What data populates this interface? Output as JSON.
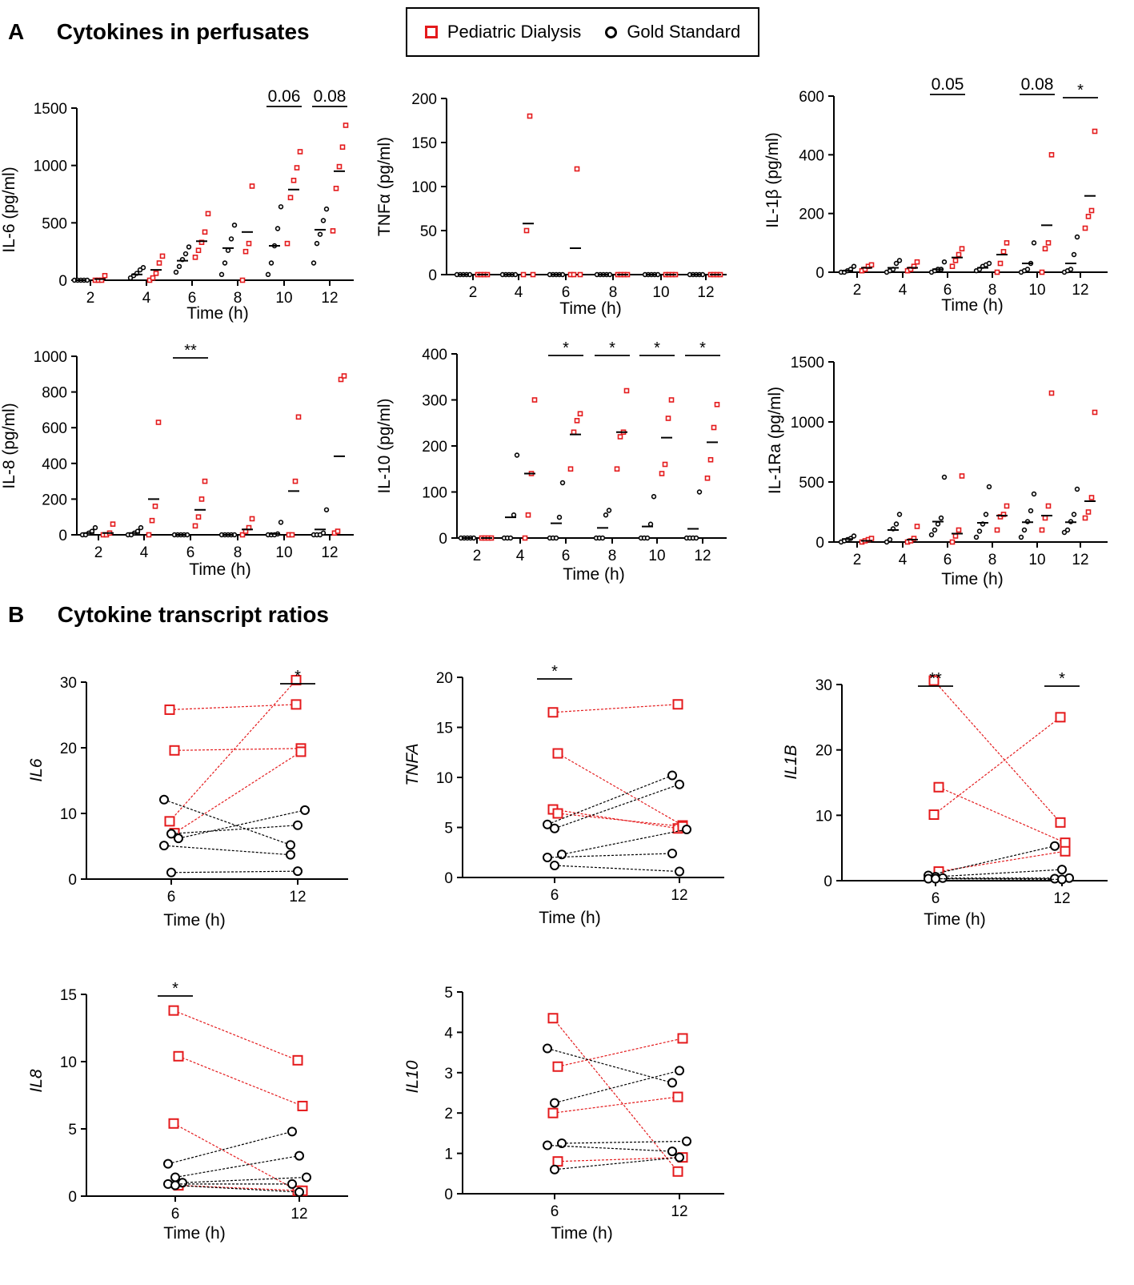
{
  "panels": {
    "a_letter": "A",
    "a_title": "Cytokines in perfusates",
    "b_letter": "B",
    "b_title": "Cytokine transcript ratios"
  },
  "legend": {
    "pd_label": "Pediatric Dialysis",
    "gs_label": "Gold Standard"
  },
  "colors": {
    "pd": "#e41a1c",
    "gs": "#000000"
  },
  "chart_data": [
    {
      "id": "il6",
      "type": "scatter",
      "ylabel": "IL-6 (pg/ml)",
      "xlabel": "Time (h)",
      "x": [
        2,
        4,
        6,
        8,
        10,
        12
      ],
      "ylim": [
        0,
        1500
      ],
      "yticks": [
        0,
        500,
        1000,
        1500
      ],
      "series": [
        {
          "name": "Gold Standard",
          "points": [
            [
              0,
              0,
              0,
              0,
              0
            ],
            [
              20,
              40,
              60,
              90,
              110
            ],
            [
              70,
              120,
              180,
              230,
              290
            ],
            [
              50,
              150,
              260,
              360,
              480
            ],
            [
              50,
              150,
              300,
              450,
              640
            ],
            [
              150,
              320,
              400,
              520,
              620
            ]
          ],
          "means": [
            0,
            50,
            170,
            280,
            300,
            440
          ]
        },
        {
          "name": "Pediatric Dialysis",
          "points": [
            [
              0,
              0,
              0,
              40
            ],
            [
              0,
              20,
              60,
              150,
              210
            ],
            [
              200,
              260,
              330,
              420,
              580
            ],
            [
              0,
              250,
              320,
              820
            ],
            [
              320,
              720,
              870,
              980,
              1120
            ],
            [
              430,
              800,
              990,
              1160,
              1350
            ]
          ],
          "means": [
            10,
            90,
            340,
            420,
            790,
            950
          ]
        }
      ],
      "annotations": [
        {
          "x": 10,
          "text": "0.06"
        },
        {
          "x": 12,
          "text": "0.08"
        }
      ]
    },
    {
      "id": "tnfa",
      "type": "scatter",
      "ylabel": "TNFα (pg/ml)",
      "xlabel": "Time (h)",
      "x": [
        2,
        4,
        6,
        8,
        10,
        12
      ],
      "ylim": [
        0,
        200
      ],
      "yticks": [
        0,
        50,
        100,
        150,
        200
      ],
      "series": [
        {
          "name": "Gold Standard",
          "points": [
            [
              0,
              0,
              0,
              0,
              0
            ],
            [
              0,
              0,
              0,
              0,
              0
            ],
            [
              0,
              0,
              0,
              0,
              0
            ],
            [
              0,
              0,
              0,
              0,
              0
            ],
            [
              0,
              0,
              0,
              0,
              0
            ],
            [
              0,
              0,
              0,
              0,
              0
            ]
          ],
          "means": [
            0,
            0,
            0,
            0,
            0,
            0
          ]
        },
        {
          "name": "Pediatric Dialysis",
          "points": [
            [
              0,
              0,
              0,
              0
            ],
            [
              0,
              50,
              180,
              0
            ],
            [
              0,
              0,
              120,
              0
            ],
            [
              0,
              0,
              0,
              0
            ],
            [
              0,
              0,
              0,
              0
            ],
            [
              0,
              0,
              0,
              0
            ]
          ],
          "means": [
            0,
            58,
            30,
            0,
            0,
            0
          ]
        }
      ],
      "annotations": []
    },
    {
      "id": "il1b",
      "type": "scatter",
      "ylabel": "IL-1β (pg/ml)",
      "xlabel": "Time (h)",
      "x": [
        2,
        4,
        6,
        8,
        10,
        12
      ],
      "ylim": [
        0,
        600
      ],
      "yticks": [
        0,
        200,
        400,
        600
      ],
      "series": [
        {
          "name": "Gold Standard",
          "points": [
            [
              0,
              0,
              5,
              10,
              20
            ],
            [
              0,
              5,
              10,
              30,
              40
            ],
            [
              0,
              5,
              10,
              10,
              35
            ],
            [
              5,
              10,
              20,
              25,
              30
            ],
            [
              0,
              5,
              10,
              30,
              100
            ],
            [
              0,
              5,
              10,
              60,
              120
            ]
          ],
          "means": [
            5,
            15,
            10,
            15,
            30,
            30
          ]
        },
        {
          "name": "Pediatric Dialysis",
          "points": [
            [
              5,
              10,
              20,
              25
            ],
            [
              5,
              10,
              20,
              35
            ],
            [
              20,
              40,
              60,
              80
            ],
            [
              0,
              30,
              70,
              100
            ],
            [
              0,
              80,
              100,
              400
            ],
            [
              150,
              190,
              210,
              480
            ]
          ],
          "means": [
            15,
            15,
            50,
            60,
            160,
            260
          ]
        }
      ],
      "annotations": [
        {
          "x": 6,
          "text": "0.05"
        },
        {
          "x": 10,
          "text": "0.08"
        },
        {
          "x": 12,
          "text": "*"
        }
      ]
    },
    {
      "id": "il8",
      "type": "scatter",
      "ylabel": "IL-8 (pg/ml)",
      "xlabel": "Time (h)",
      "x": [
        2,
        4,
        6,
        8,
        10,
        12
      ],
      "ylim": [
        0,
        1000
      ],
      "yticks": [
        0,
        200,
        400,
        600,
        800,
        1000
      ],
      "series": [
        {
          "name": "Gold Standard",
          "points": [
            [
              0,
              0,
              10,
              20,
              40
            ],
            [
              0,
              0,
              10,
              20,
              40
            ],
            [
              0,
              0,
              0,
              0,
              0
            ],
            [
              0,
              0,
              0,
              0,
              0
            ],
            [
              0,
              0,
              0,
              5,
              70
            ],
            [
              0,
              0,
              0,
              10,
              140
            ]
          ],
          "means": [
            10,
            10,
            0,
            0,
            5,
            30
          ]
        },
        {
          "name": "Pediatric Dialysis",
          "points": [
            [
              0,
              0,
              10,
              60
            ],
            [
              0,
              80,
              160,
              630
            ],
            [
              50,
              100,
              200,
              300
            ],
            [
              0,
              20,
              40,
              90
            ],
            [
              0,
              0,
              300,
              660
            ],
            [
              10,
              20,
              870,
              890
            ]
          ],
          "means": [
            10,
            200,
            140,
            30,
            245,
            440
          ]
        }
      ],
      "annotations": [
        {
          "x": 6,
          "text": "**"
        }
      ]
    },
    {
      "id": "il10",
      "type": "scatter",
      "ylabel": "IL-10 (pg/ml)",
      "xlabel": "Time (h)",
      "x": [
        2,
        4,
        6,
        8,
        10,
        12
      ],
      "ylim": [
        0,
        400
      ],
      "yticks": [
        0,
        100,
        200,
        300,
        400
      ],
      "series": [
        {
          "name": "Gold Standard",
          "points": [
            [
              0,
              0,
              0,
              0,
              0
            ],
            [
              0,
              0,
              0,
              50,
              180
            ],
            [
              0,
              0,
              0,
              45,
              120
            ],
            [
              0,
              0,
              0,
              50,
              60
            ],
            [
              0,
              0,
              0,
              30,
              90
            ],
            [
              0,
              0,
              0,
              0,
              100
            ]
          ],
          "means": [
            0,
            45,
            32,
            22,
            25,
            20
          ]
        },
        {
          "name": "Pediatric Dialysis",
          "points": [
            [
              0,
              0,
              0,
              0
            ],
            [
              0,
              50,
              140,
              300
            ],
            [
              150,
              230,
              255,
              270
            ],
            [
              150,
              220,
              230,
              320
            ],
            [
              140,
              160,
              260,
              300
            ],
            [
              130,
              170,
              240,
              290
            ]
          ],
          "means": [
            0,
            140,
            225,
            230,
            218,
            208
          ]
        }
      ],
      "annotations": [
        {
          "x": 6,
          "text": "*"
        },
        {
          "x": 8,
          "text": "*"
        },
        {
          "x": 10,
          "text": "*"
        },
        {
          "x": 12,
          "text": "*"
        }
      ]
    },
    {
      "id": "il1ra",
      "type": "scatter",
      "ylabel": "IL-1Ra (pg/ml)",
      "xlabel": "Time (h)",
      "x": [
        2,
        4,
        6,
        8,
        10,
        12
      ],
      "ylim": [
        0,
        1500
      ],
      "yticks": [
        0,
        500,
        1000,
        1500
      ],
      "series": [
        {
          "name": "Gold Standard",
          "points": [
            [
              0,
              10,
              20,
              30,
              50
            ],
            [
              0,
              20,
              110,
              150,
              230
            ],
            [
              60,
              100,
              150,
              200,
              540
            ],
            [
              40,
              90,
              150,
              230,
              460
            ],
            [
              40,
              100,
              170,
              260,
              400
            ],
            [
              80,
              100,
              170,
              230,
              440
            ]
          ],
          "means": [
            25,
            100,
            170,
            160,
            165,
            165
          ]
        },
        {
          "name": "Pediatric Dialysis",
          "points": [
            [
              0,
              10,
              20,
              30
            ],
            [
              0,
              10,
              30,
              130
            ],
            [
              0,
              50,
              100,
              550
            ],
            [
              100,
              210,
              230,
              300
            ],
            [
              100,
              200,
              300,
              1240
            ],
            [
              200,
              250,
              370,
              1080
            ]
          ],
          "means": [
            10,
            20,
            70,
            220,
            220,
            340
          ]
        }
      ],
      "annotations": []
    },
    {
      "id": "IL6",
      "type": "paired",
      "ylabel": "IL6",
      "xlabel": "Time (h)",
      "x": [
        6,
        12
      ],
      "ylim": [
        0,
        30
      ],
      "yticks": [
        0,
        10,
        20,
        30
      ],
      "series": [
        {
          "name": "Pediatric Dialysis",
          "pairs": [
            [
              25.8,
              26.6
            ],
            [
              19.6,
              19.9
            ],
            [
              8.8,
              30.3
            ],
            [
              7.0,
              19.4
            ]
          ]
        },
        {
          "name": "Gold Standard",
          "pairs": [
            [
              12.1,
              5.2
            ],
            [
              6.9,
              8.2
            ],
            [
              6.2,
              10.5
            ],
            [
              5.1,
              3.7
            ],
            [
              1.0,
              1.2
            ]
          ]
        }
      ],
      "annotations": [
        {
          "x": 12,
          "text": "*"
        }
      ]
    },
    {
      "id": "TNFA",
      "type": "paired",
      "ylabel": "TNFA",
      "xlabel": "Time (h)",
      "x": [
        6,
        12
      ],
      "ylim": [
        0,
        20
      ],
      "yticks": [
        0,
        5,
        10,
        15,
        20
      ],
      "series": [
        {
          "name": "Pediatric Dialysis",
          "pairs": [
            [
              16.5,
              17.3
            ],
            [
              12.4,
              5.2
            ],
            [
              6.8,
              4.9
            ],
            [
              6.4,
              5.1
            ]
          ]
        },
        {
          "name": "Gold Standard",
          "pairs": [
            [
              5.3,
              10.2
            ],
            [
              4.9,
              9.3
            ],
            [
              2.3,
              4.8
            ],
            [
              2.0,
              2.4
            ],
            [
              1.2,
              0.6
            ]
          ]
        }
      ],
      "annotations": [
        {
          "x": 6,
          "text": "*"
        }
      ]
    },
    {
      "id": "IL1B",
      "type": "paired",
      "ylabel": "IL1B",
      "xlabel": "Time (h)",
      "x": [
        6,
        12
      ],
      "ylim": [
        0,
        30
      ],
      "yticks": [
        0,
        10,
        20,
        30
      ],
      "series": [
        {
          "name": "Pediatric Dialysis",
          "pairs": [
            [
              30.6,
              8.9
            ],
            [
              14.3,
              5.8
            ],
            [
              10.1,
              25.0
            ],
            [
              1.4,
              4.5
            ]
          ]
        },
        {
          "name": "Gold Standard",
          "pairs": [
            [
              0.8,
              5.3
            ],
            [
              0.6,
              1.7
            ],
            [
              0.4,
              0.4
            ],
            [
              0.3,
              0.3
            ],
            [
              0.3,
              0.2
            ]
          ]
        }
      ],
      "annotations": [
        {
          "x": 6,
          "text": "**"
        },
        {
          "x": 12,
          "text": "*"
        }
      ]
    },
    {
      "id": "IL8",
      "type": "paired",
      "ylabel": "IL8",
      "xlabel": "Time (h)",
      "x": [
        6,
        12
      ],
      "ylim": [
        0,
        15
      ],
      "yticks": [
        0,
        5,
        10,
        15
      ],
      "series": [
        {
          "name": "Pediatric Dialysis",
          "pairs": [
            [
              13.8,
              10.1
            ],
            [
              10.4,
              6.7
            ],
            [
              5.4,
              0.4
            ],
            [
              0.8,
              0.4
            ]
          ]
        },
        {
          "name": "Gold Standard",
          "pairs": [
            [
              2.4,
              4.8
            ],
            [
              1.4,
              3.0
            ],
            [
              1.0,
              1.4
            ],
            [
              0.9,
              0.9
            ],
            [
              0.8,
              0.3
            ]
          ]
        }
      ],
      "annotations": [
        {
          "x": 6,
          "text": "*"
        }
      ]
    },
    {
      "id": "IL10",
      "type": "paired",
      "ylabel": "IL10",
      "xlabel": "Time (h)",
      "x": [
        6,
        12
      ],
      "ylim": [
        0,
        5
      ],
      "yticks": [
        0,
        1,
        2,
        3,
        4,
        5
      ],
      "series": [
        {
          "name": "Pediatric Dialysis",
          "pairs": [
            [
              4.35,
              0.55
            ],
            [
              3.15,
              3.85
            ],
            [
              2.0,
              2.4
            ],
            [
              0.8,
              0.9
            ]
          ]
        },
        {
          "name": "Gold Standard",
          "pairs": [
            [
              3.6,
              2.75
            ],
            [
              2.25,
              3.05
            ],
            [
              1.25,
              1.3
            ],
            [
              1.2,
              1.05
            ],
            [
              0.6,
              0.9
            ]
          ]
        }
      ],
      "annotations": []
    }
  ]
}
